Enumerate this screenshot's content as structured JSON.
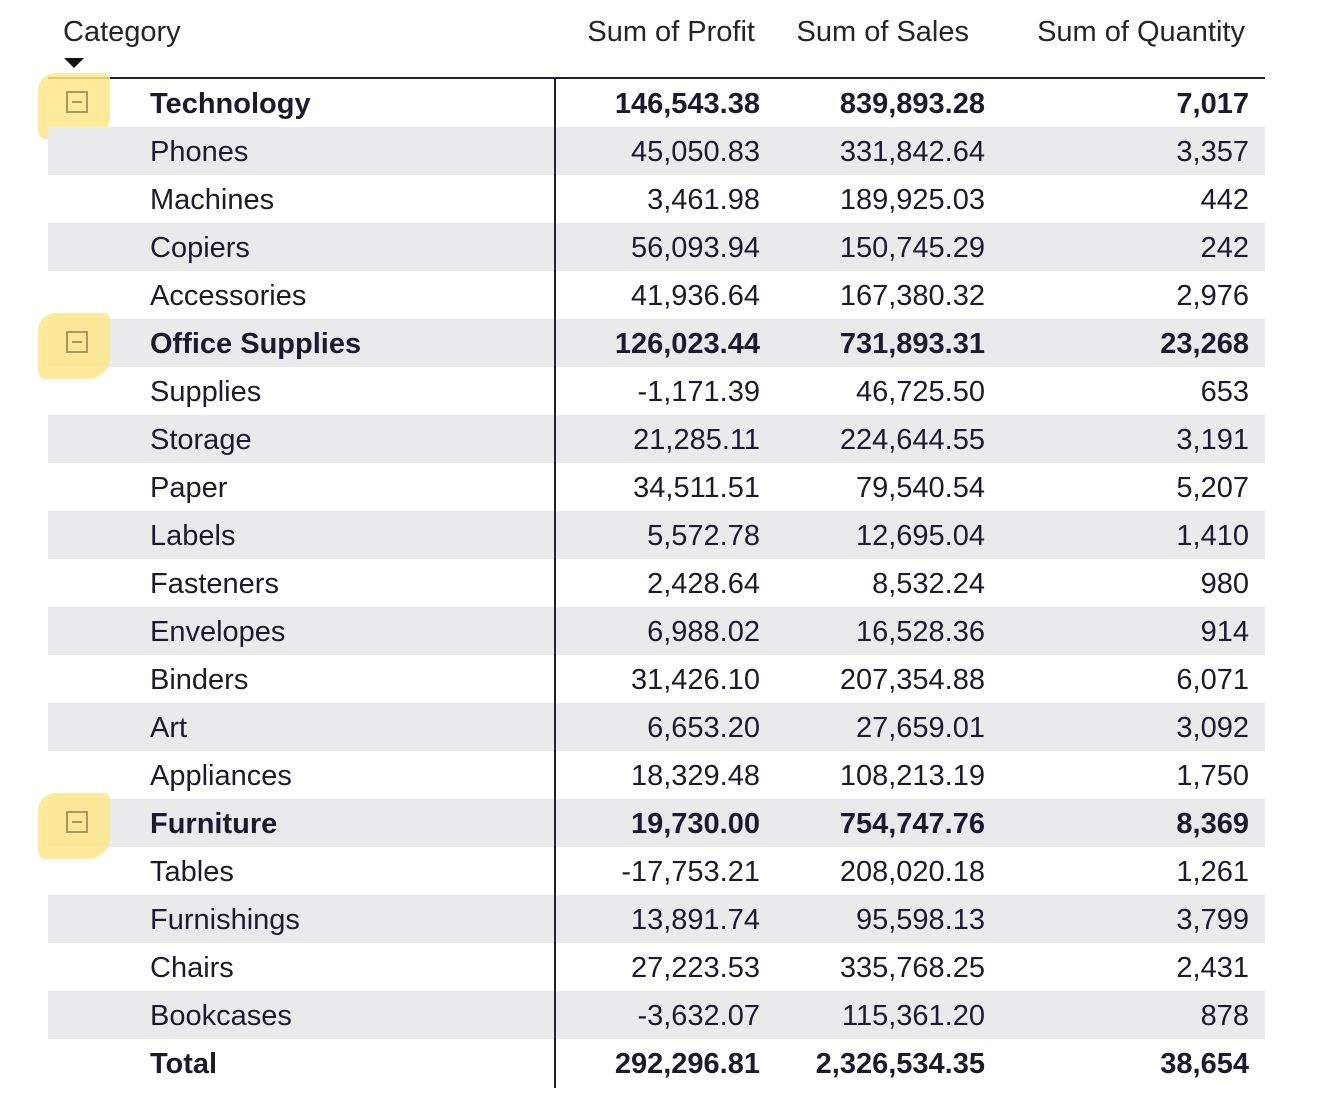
{
  "headers": {
    "category": "Category",
    "profit": "Sum of Profit",
    "sales": "Sum of Sales",
    "quantity": "Sum of Quantity"
  },
  "groups": [
    {
      "name": "Technology",
      "profit": "146,543.38",
      "sales": "839,893.28",
      "quantity": "7,017",
      "children": [
        {
          "name": "Phones",
          "profit": "45,050.83",
          "sales": "331,842.64",
          "quantity": "3,357"
        },
        {
          "name": "Machines",
          "profit": "3,461.98",
          "sales": "189,925.03",
          "quantity": "442"
        },
        {
          "name": "Copiers",
          "profit": "56,093.94",
          "sales": "150,745.29",
          "quantity": "242"
        },
        {
          "name": "Accessories",
          "profit": "41,936.64",
          "sales": "167,380.32",
          "quantity": "2,976"
        }
      ]
    },
    {
      "name": "Office Supplies",
      "profit": "126,023.44",
      "sales": "731,893.31",
      "quantity": "23,268",
      "children": [
        {
          "name": "Supplies",
          "profit": "-1,171.39",
          "sales": "46,725.50",
          "quantity": "653"
        },
        {
          "name": "Storage",
          "profit": "21,285.11",
          "sales": "224,644.55",
          "quantity": "3,191"
        },
        {
          "name": "Paper",
          "profit": "34,511.51",
          "sales": "79,540.54",
          "quantity": "5,207"
        },
        {
          "name": "Labels",
          "profit": "5,572.78",
          "sales": "12,695.04",
          "quantity": "1,410"
        },
        {
          "name": "Fasteners",
          "profit": "2,428.64",
          "sales": "8,532.24",
          "quantity": "980"
        },
        {
          "name": "Envelopes",
          "profit": "6,988.02",
          "sales": "16,528.36",
          "quantity": "914"
        },
        {
          "name": "Binders",
          "profit": "31,426.10",
          "sales": "207,354.88",
          "quantity": "6,071"
        },
        {
          "name": "Art",
          "profit": "6,653.20",
          "sales": "27,659.01",
          "quantity": "3,092"
        },
        {
          "name": "Appliances",
          "profit": "18,329.48",
          "sales": "108,213.19",
          "quantity": "1,750"
        }
      ]
    },
    {
      "name": "Furniture",
      "profit": "19,730.00",
      "sales": "754,747.76",
      "quantity": "8,369",
      "children": [
        {
          "name": "Tables",
          "profit": "-17,753.21",
          "sales": "208,020.18",
          "quantity": "1,261"
        },
        {
          "name": "Furnishings",
          "profit": "13,891.74",
          "sales": "95,598.13",
          "quantity": "3,799"
        },
        {
          "name": "Chairs",
          "profit": "27,223.53",
          "sales": "335,768.25",
          "quantity": "2,431"
        },
        {
          "name": "Bookcases",
          "profit": "-3,632.07",
          "sales": "115,361.20",
          "quantity": "878"
        }
      ]
    }
  ],
  "total": {
    "label": "Total",
    "profit": "292,296.81",
    "sales": "2,326,534.35",
    "quantity": "38,654"
  },
  "colors": {
    "highlight": "#fde68a",
    "stripe": "#e9eaec",
    "text": "#1b1b2f"
  }
}
